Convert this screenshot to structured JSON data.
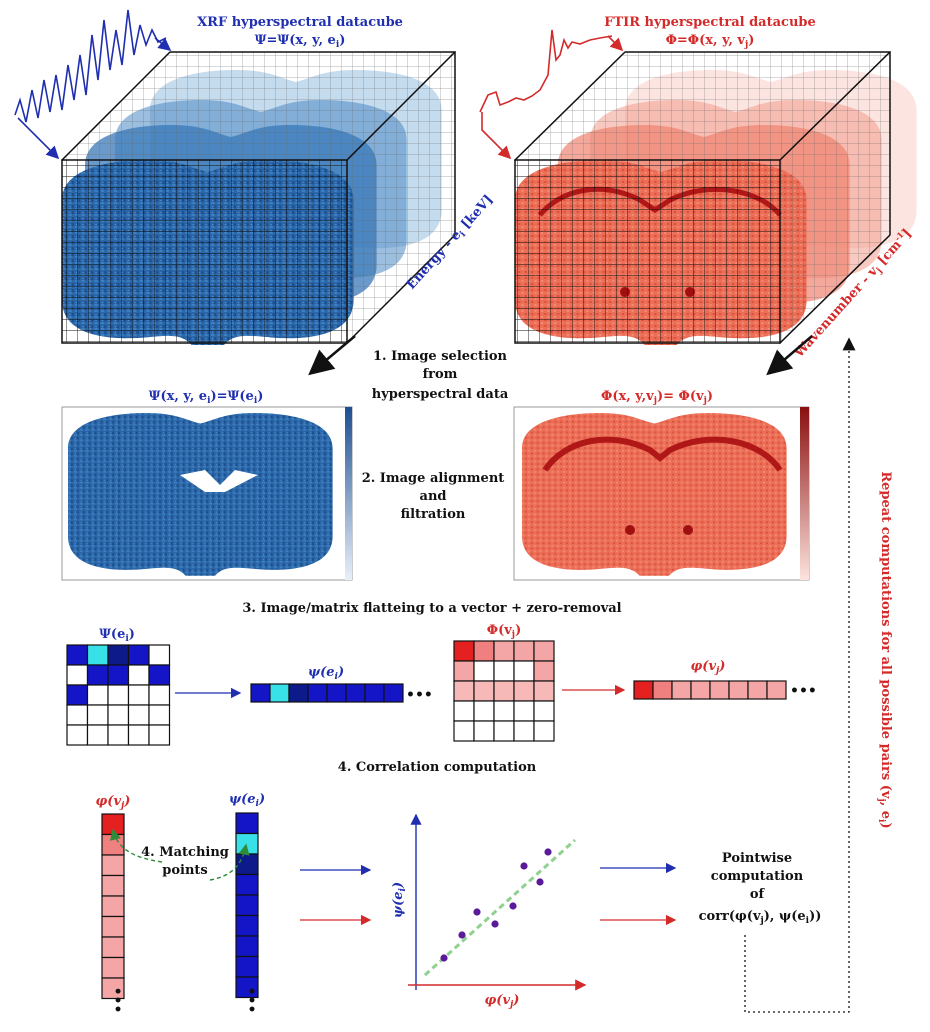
{
  "xrf": {
    "title": "XRF hyperspectral datacube",
    "formula": "Ψ=Ψ(x, y, e",
    "formula_sub": "i",
    "formula_end": ")",
    "axis": "Energy - e",
    "axis_sub": "i",
    "axis_unit": " [keV]",
    "image_label": "Ψ(x, y, e",
    "image_label_mid": ")=Ψ(e",
    "matrix_label": "Ψ(e",
    "vector_label": "ψ(e",
    "sub": "i",
    "close": ")"
  },
  "ftir": {
    "title": "FTIR hyperspectral datacube",
    "formula": "Φ=Φ(x, y, v",
    "formula_sub": "j",
    "formula_end": ")",
    "axis": "Wavenumber - v",
    "axis_sub": "j",
    "axis_unit": " [cm",
    "axis_sup": "-1",
    "axis_end": "]",
    "image_label": "Φ(x, y,v",
    "image_label_mid": ")= Φ(v",
    "matrix_label": "Φ(v",
    "vector_label": "φ(v",
    "sub": "j",
    "close": ")"
  },
  "steps": {
    "step1_line1": "1. Image selection",
    "step1_line2": "from",
    "step1_line3": "hyperspectral data",
    "step2_line1": "2. Image alignment",
    "step2_line2": "and",
    "step2_line3": "filtration",
    "step3": "3. Image/matrix flatteing to a vector + zero-removal",
    "step4": "4. Correlation computation",
    "matching_line1": "4. Matching",
    "matching_line2": "points"
  },
  "scatter": {
    "ylabel": "ψ(e",
    "ylabel_sub": "i",
    "xlabel": "φ(v",
    "xlabel_sub": "j",
    "close": ")"
  },
  "result": {
    "line1": "Pointwise",
    "line2": "computation",
    "line3": "of",
    "line4": "corr(φ(v",
    "line4_mid": "), ψ(e",
    "line4_end": "))"
  },
  "repeat": {
    "text": "Repeat computations for all possible pairs (v",
    "sub_j": "j",
    "mid": ", e",
    "sub_i": "i",
    "end": ")"
  },
  "ellipsis": "•••",
  "colors": {
    "xrf_blue": "#1f2fb0",
    "ftir_red": "#d42a2a"
  }
}
